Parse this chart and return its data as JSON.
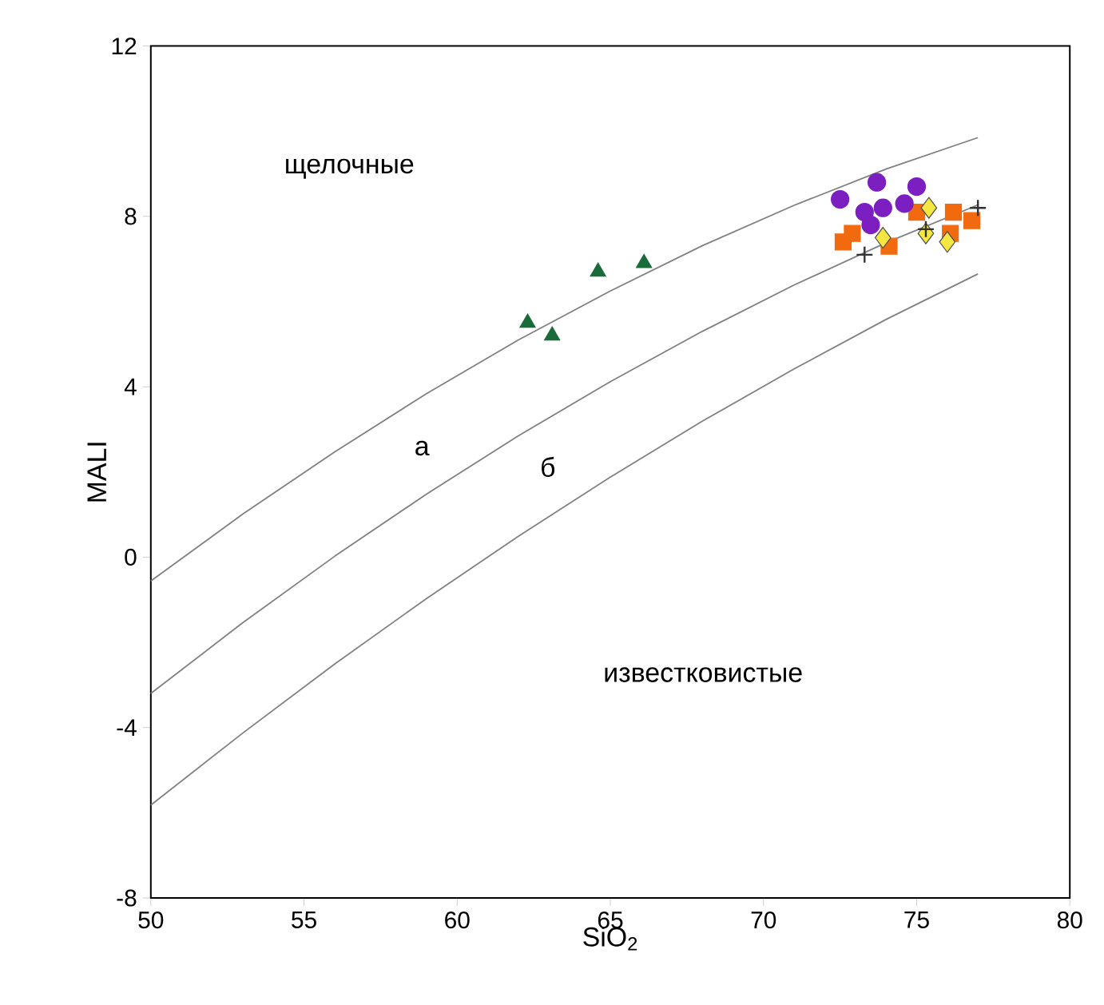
{
  "chart_data": {
    "type": "scatter",
    "xlabel": "SiO$_{2}$",
    "ylabel": "MALI",
    "xlim": [
      50,
      80
    ],
    "ylim": [
      -8,
      12
    ],
    "xticks": [
      50,
      55,
      60,
      65,
      70,
      75,
      80
    ],
    "yticks": [
      -8,
      -4,
      0,
      4,
      8,
      12
    ],
    "grid": false,
    "series": [
      {
        "type": "line",
        "color": "#808080",
        "marker": "none",
        "x": [
          50,
          53,
          56,
          59,
          62,
          65,
          68,
          71,
          74,
          77
        ],
        "values": [
          -0.56,
          1.01,
          2.47,
          3.84,
          5.1,
          6.25,
          7.31,
          8.26,
          9.11,
          9.85
        ]
      },
      {
        "type": "line",
        "color": "#808080",
        "marker": "none",
        "x": [
          50,
          53,
          56,
          59,
          62,
          65,
          68,
          71,
          74,
          77
        ],
        "values": [
          -3.2,
          -1.54,
          0.02,
          1.48,
          2.85,
          4.12,
          5.3,
          6.39,
          7.38,
          8.27
        ]
      },
      {
        "type": "line",
        "color": "#808080",
        "marker": "none",
        "x": [
          50,
          53,
          56,
          59,
          62,
          65,
          68,
          71,
          74,
          77
        ],
        "values": [
          -5.82,
          -4.13,
          -2.51,
          -0.97,
          0.49,
          1.88,
          3.19,
          4.42,
          5.58,
          6.65
        ]
      },
      {
        "color": "#1a6b3a",
        "marker": "triangle",
        "x": [
          62.3,
          63.1,
          64.6,
          66.1
        ],
        "values": [
          5.5,
          5.2,
          6.7,
          6.9
        ]
      },
      {
        "color": "#f26a0f",
        "marker": "square",
        "x": [
          72.6,
          74.1,
          75.0,
          76.2,
          76.8,
          76.1,
          72.9
        ],
        "values": [
          7.4,
          7.3,
          8.1,
          8.1,
          7.9,
          7.6,
          7.6
        ]
      },
      {
        "color": "#7b1fc0",
        "marker": "circle",
        "x": [
          72.5,
          73.7,
          75.0,
          73.3,
          73.9,
          74.6,
          73.5
        ],
        "values": [
          8.4,
          8.8,
          8.7,
          8.1,
          8.2,
          8.3,
          7.8
        ]
      },
      {
        "color": "#f5e642",
        "marker": "diamond",
        "x": [
          75.4,
          73.9,
          75.3,
          76.0
        ],
        "values": [
          8.2,
          7.5,
          7.6,
          7.4
        ]
      },
      {
        "color": "#333333",
        "marker": "cross",
        "x": [
          77.0,
          73.3,
          75.3
        ],
        "values": [
          8.2,
          7.1,
          7.7
        ]
      }
    ],
    "annotations": [
      "щелочные",
      "а",
      "б",
      "известковистые"
    ]
  }
}
